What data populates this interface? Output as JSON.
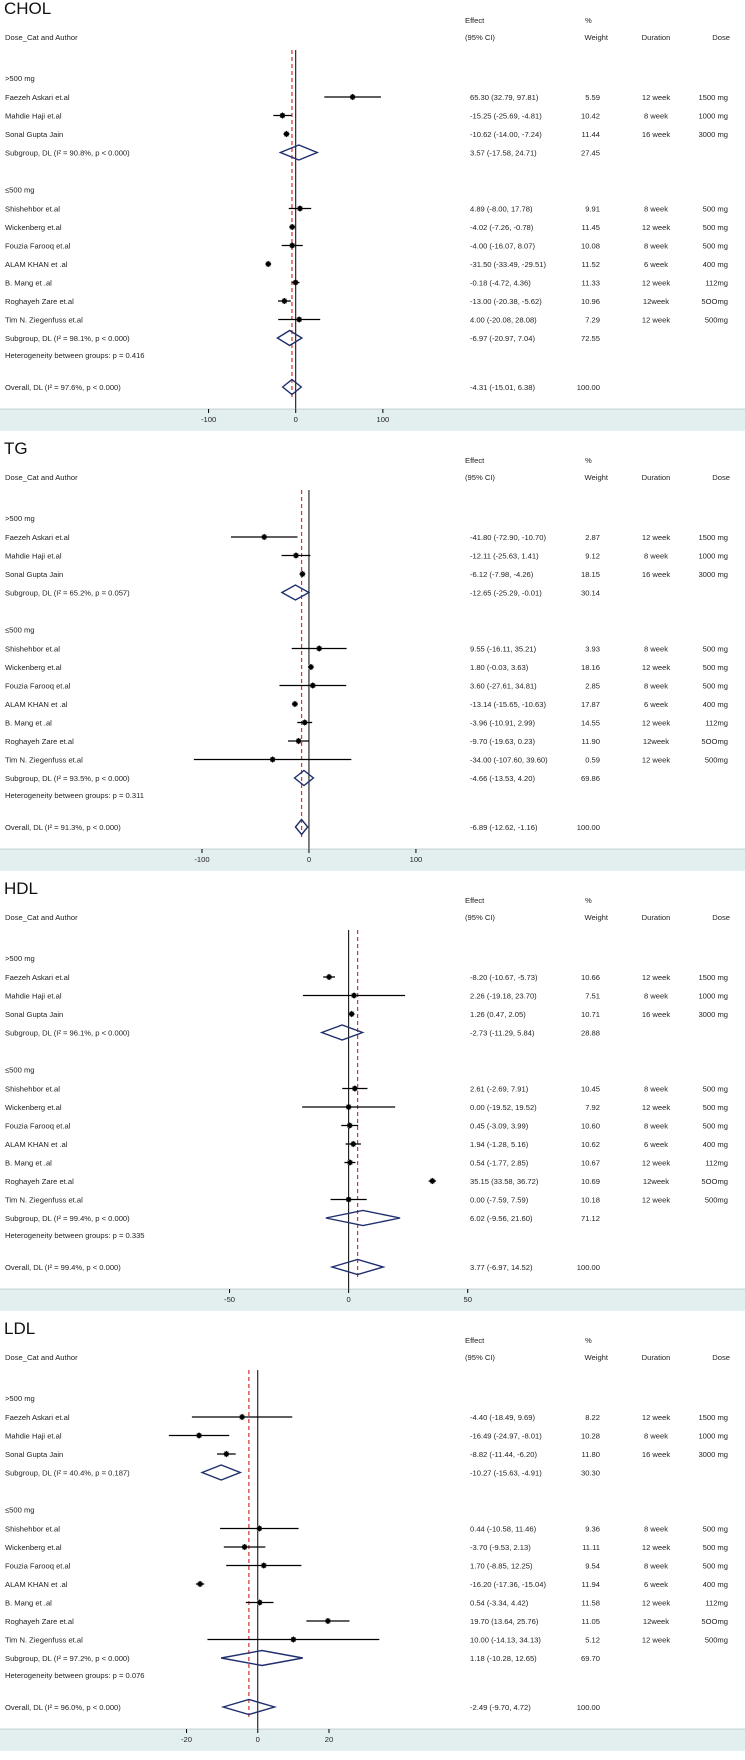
{
  "colors": {
    "axis_band": "#e3eeee",
    "ci_line": "#000000",
    "point": "#000000",
    "diamond": "#1f2f6e",
    "null_line": "#000000",
    "overall_line": "#d9312b"
  },
  "columns": {
    "study": "Dose_Cat and Author",
    "effect_top": "Effect",
    "effect_bottom": "(95% CI)",
    "weight_top": "%",
    "weight_bottom": "Weight",
    "duration": "Duration",
    "dose": "Dose"
  },
  "chart_data": [
    {
      "type": "forest",
      "title": "CHOL",
      "xlim": [
        -150,
        200
      ],
      "ticks": [
        -100,
        0,
        100
      ],
      "overall_effect": -4.31,
      "groups": [
        {
          "label": ">500 mg",
          "studies": [
            {
              "author": "Faezeh Askari et.al",
              "effect": 65.3,
              "lo": 32.79,
              "hi": 97.81,
              "ci_text": "65.30 (32.79, 97.81)",
              "weight": "5.59",
              "duration": "12 week",
              "dose": "1500 mg"
            },
            {
              "author": "Mahdie Haji et.al",
              "effect": -15.25,
              "lo": -25.69,
              "hi": -4.81,
              "ci_text": "-15.25 (-25.69, -4.81)",
              "weight": "10.42",
              "duration": "8 week",
              "dose": "1000 mg"
            },
            {
              "author": "Sonal Gupta Jain",
              "effect": -10.62,
              "lo": -14.0,
              "hi": -7.24,
              "ci_text": "-10.62 (-14.00, -7.24)",
              "weight": "11.44",
              "duration": "16 week",
              "dose": "3000 mg"
            }
          ],
          "subgroup": {
            "label": "Subgroup, DL (I² = 90.8%, p < 0.000)",
            "effect": 3.57,
            "lo": -17.58,
            "hi": 24.71,
            "ci_text": "3.57 (-17.58, 24.71)",
            "weight": "27.45"
          }
        },
        {
          "label": "≤500 mg",
          "studies": [
            {
              "author": "Shishehbor et.al",
              "effect": 4.89,
              "lo": -8.0,
              "hi": 17.78,
              "ci_text": "4.89 (-8.00, 17.78)",
              "weight": "9.91",
              "duration": "8 week",
              "dose": "500 mg"
            },
            {
              "author": "Wickenberg et.al",
              "effect": -4.02,
              "lo": -7.26,
              "hi": -0.78,
              "ci_text": "-4.02 (-7.26, -0.78)",
              "weight": "11.45",
              "duration": "12 week",
              "dose": "500 mg"
            },
            {
              "author": "Fouzia Farooq et.al",
              "effect": -4.0,
              "lo": -16.07,
              "hi": 8.07,
              "ci_text": "-4.00 (-16.07, 8.07)",
              "weight": "10.08",
              "duration": "8 week",
              "dose": "500 mg"
            },
            {
              "author": "ALAM KHAN et .al",
              "effect": -31.5,
              "lo": -33.49,
              "hi": -29.51,
              "ci_text": "-31.50 (-33.49, -29.51)",
              "weight": "11.52",
              "duration": "6 week",
              "dose": "400 mg"
            },
            {
              "author": "B. Mang et .al",
              "effect": -0.18,
              "lo": -4.72,
              "hi": 4.36,
              "ci_text": "-0.18 (-4.72, 4.36)",
              "weight": "11.33",
              "duration": "12 week",
              "dose": "112mg"
            },
            {
              "author": "Roghayeh Zare et.al",
              "effect": -13.0,
              "lo": -20.38,
              "hi": -5.62,
              "ci_text": "-13.00 (-20.38, -5.62)",
              "weight": "10.96",
              "duration": "12week",
              "dose": "5OOmg"
            },
            {
              "author": "Tim N. Ziegenfuss et.al",
              "effect": 4.0,
              "lo": -20.08,
              "hi": 28.08,
              "ci_text": "4.00 (-20.08, 28.08)",
              "weight": "7.29",
              "duration": "12 week",
              "dose": "500mg"
            }
          ],
          "subgroup": {
            "label": "Subgroup, DL (I² = 98.1%, p < 0.000)",
            "effect": -6.97,
            "lo": -20.97,
            "hi": 7.04,
            "ci_text": "-6.97 (-20.97, 7.04)",
            "weight": "72.55"
          }
        }
      ],
      "heterogeneity": "Heterogeneity between groups: p = 0.416",
      "overall": {
        "label": "Overall, DL (I² = 97.6%, p < 0.000)",
        "effect": -4.31,
        "lo": -15.01,
        "hi": 6.38,
        "ci_text": "-4.31 (-15.01, 6.38)",
        "weight": "100.00"
      }
    },
    {
      "type": "forest",
      "title": "TG",
      "xlim": [
        -200,
        230
      ],
      "ticks": [
        -100,
        0,
        100
      ],
      "overall_effect": -6.89,
      "groups": [
        {
          "label": ">500 mg",
          "studies": [
            {
              "author": "Faezeh Askari et.al",
              "effect": -41.8,
              "lo": -72.9,
              "hi": -10.7,
              "ci_text": "-41.80 (-72.90, -10.70)",
              "weight": "2.87",
              "duration": "12 week",
              "dose": "1500 mg"
            },
            {
              "author": "Mahdie Haji et.al",
              "effect": -12.11,
              "lo": -25.63,
              "hi": 1.41,
              "ci_text": "-12.11 (-25.63, 1.41)",
              "weight": "9.12",
              "duration": "8 week",
              "dose": "1000 mg"
            },
            {
              "author": "Sonal Gupta Jain",
              "effect": -6.12,
              "lo": -7.98,
              "hi": -4.26,
              "ci_text": "-6.12 (-7.98, -4.26)",
              "weight": "18.15",
              "duration": "16 week",
              "dose": "3000 mg"
            }
          ],
          "subgroup": {
            "label": "Subgroup, DL (I² = 65.2%, p = 0.057)",
            "effect": -12.65,
            "lo": -25.29,
            "hi": -0.01,
            "ci_text": "-12.65 (-25.29, -0.01)",
            "weight": "30.14"
          }
        },
        {
          "label": "≤500 mg",
          "studies": [
            {
              "author": "Shishehbor et.al",
              "effect": 9.55,
              "lo": -16.11,
              "hi": 35.21,
              "ci_text": "9.55 (-16.11, 35.21)",
              "weight": "3.93",
              "duration": "8 week",
              "dose": "500 mg"
            },
            {
              "author": "Wickenberg et.al",
              "effect": 1.8,
              "lo": -0.03,
              "hi": 3.63,
              "ci_text": "1.80 (-0.03, 3.63)",
              "weight": "18.16",
              "duration": "12 week",
              "dose": "500 mg"
            },
            {
              "author": "Fouzia Farooq et.al",
              "effect": 3.6,
              "lo": -27.61,
              "hi": 34.81,
              "ci_text": "3.60 (-27.61, 34.81)",
              "weight": "2.85",
              "duration": "8 week",
              "dose": "500 mg"
            },
            {
              "author": "ALAM KHAN et .al",
              "effect": -13.14,
              "lo": -15.65,
              "hi": -10.63,
              "ci_text": "-13.14 (-15.65, -10.63)",
              "weight": "17.87",
              "duration": "6 week",
              "dose": "400 mg"
            },
            {
              "author": "B. Mang et .al",
              "effect": -3.96,
              "lo": -10.91,
              "hi": 2.99,
              "ci_text": "-3.96 (-10.91, 2.99)",
              "weight": "14.55",
              "duration": "12 week",
              "dose": "112mg"
            },
            {
              "author": "Roghayeh Zare et.al",
              "effect": -9.7,
              "lo": -19.63,
              "hi": 0.23,
              "ci_text": "-9.70 (-19.63, 0.23)",
              "weight": "11.90",
              "duration": "12week",
              "dose": "5OOmg"
            },
            {
              "author": "Tim N. Ziegenfuss et.al",
              "effect": -34.0,
              "lo": -107.6,
              "hi": 39.6,
              "ci_text": "-34.00 (-107.60, 39.60)",
              "weight": "0.59",
              "duration": "12 week",
              "dose": "500mg"
            }
          ],
          "subgroup": {
            "label": "Subgroup, DL (I² = 93.5%, p < 0.000)",
            "effect": -4.66,
            "lo": -13.53,
            "hi": 4.2,
            "ci_text": "-4.66 (-13.53, 4.20)",
            "weight": "69.86"
          }
        }
      ],
      "heterogeneity": "Heterogeneity between groups: p = 0.311",
      "overall": {
        "label": "Overall, DL (I² = 91.3%, p < 0.000)",
        "effect": -6.89,
        "lo": -12.62,
        "hi": -1.16,
        "ci_text": "-6.89 (-12.62, -1.16)",
        "weight": "100.00"
      }
    },
    {
      "type": "forest",
      "title": "HDL",
      "xlim": [
        -75,
        90
      ],
      "ticks": [
        -50,
        0,
        50
      ],
      "overall_effect": 3.77,
      "groups": [
        {
          "label": ">500 mg",
          "studies": [
            {
              "author": "Faezeh Askari et.al",
              "effect": -8.2,
              "lo": -10.67,
              "hi": -5.73,
              "ci_text": "-8.20 (-10.67, -5.73)",
              "weight": "10.66",
              "duration": "12 week",
              "dose": "1500 mg"
            },
            {
              "author": "Mahdie Haji et.al",
              "effect": 2.26,
              "lo": -19.18,
              "hi": 23.7,
              "ci_text": "2.26 (-19.18, 23.70)",
              "weight": "7.51",
              "duration": "8 week",
              "dose": "1000 mg"
            },
            {
              "author": "Sonal Gupta Jain",
              "effect": 1.26,
              "lo": 0.47,
              "hi": 2.05,
              "ci_text": "1.26 (0.47, 2.05)",
              "weight": "10.71",
              "duration": "16 week",
              "dose": "3000 mg"
            }
          ],
          "subgroup": {
            "label": "Subgroup, DL (I² = 96.1%, p < 0.000)",
            "effect": -2.73,
            "lo": -11.29,
            "hi": 5.84,
            "ci_text": "-2.73 (-11.29, 5.84)",
            "weight": "28.88"
          }
        },
        {
          "label": "≤500 mg",
          "studies": [
            {
              "author": "Shishehbor et.al",
              "effect": 2.61,
              "lo": -2.69,
              "hi": 7.91,
              "ci_text": "2.61 (-2.69, 7.91)",
              "weight": "10.45",
              "duration": "8 week",
              "dose": "500 mg"
            },
            {
              "author": "Wickenberg et.al",
              "effect": 0.0,
              "lo": -19.52,
              "hi": 19.52,
              "ci_text": "0.00 (-19.52, 19.52)",
              "weight": "7.92",
              "duration": "12 week",
              "dose": "500 mg"
            },
            {
              "author": "Fouzia Farooq et.al",
              "effect": 0.45,
              "lo": -3.09,
              "hi": 3.99,
              "ci_text": "0.45 (-3.09, 3.99)",
              "weight": "10.60",
              "duration": "8 week",
              "dose": "500 mg"
            },
            {
              "author": "ALAM KHAN et .al",
              "effect": 1.94,
              "lo": -1.28,
              "hi": 5.16,
              "ci_text": "1.94 (-1.28, 5.16)",
              "weight": "10.62",
              "duration": "6 week",
              "dose": "400 mg"
            },
            {
              "author": "B. Mang et .al",
              "effect": 0.54,
              "lo": -1.77,
              "hi": 2.85,
              "ci_text": "0.54 (-1.77, 2.85)",
              "weight": "10.67",
              "duration": "12 week",
              "dose": "112mg"
            },
            {
              "author": "Roghayeh Zare et.al",
              "effect": 35.15,
              "lo": 33.58,
              "hi": 36.72,
              "ci_text": "35.15 (33.58, 36.72)",
              "weight": "10.69",
              "duration": "12week",
              "dose": "5OOmg"
            },
            {
              "author": "Tim N. Ziegenfuss et.al",
              "effect": 0.0,
              "lo": -7.59,
              "hi": 7.59,
              "ci_text": "0.00 (-7.59, 7.59)",
              "weight": "10.18",
              "duration": "12 week",
              "dose": "500mg"
            }
          ],
          "subgroup": {
            "label": "Subgroup, DL (I² = 99.4%, p < 0.000)",
            "effect": 6.02,
            "lo": -9.56,
            "hi": 21.6,
            "ci_text": "6.02 (-9.56, 21.60)",
            "weight": "71.12"
          }
        }
      ],
      "heterogeneity": "Heterogeneity between groups: p = 0.335",
      "overall": {
        "label": "Overall, DL (I² = 99.4%, p < 0.000)",
        "effect": 3.77,
        "lo": -6.97,
        "hi": 14.52,
        "ci_text": "3.77 (-6.97, 14.52)",
        "weight": "100.00"
      }
    },
    {
      "type": "forest",
      "title": "LDL",
      "xlim": [
        -37,
        45
      ],
      "ticks": [
        -20,
        0,
        20
      ],
      "overall_effect": -2.49,
      "groups": [
        {
          "label": ">500 mg",
          "studies": [
            {
              "author": "Faezeh Askari et.al",
              "effect": -4.4,
              "lo": -18.49,
              "hi": 9.69,
              "ci_text": "-4.40 (-18.49, 9.69)",
              "weight": "8.22",
              "duration": "12 week",
              "dose": "1500 mg"
            },
            {
              "author": "Mahdie Haji et.al",
              "effect": -16.49,
              "lo": -24.97,
              "hi": -8.01,
              "ci_text": "-16.49 (-24.97, -8.01)",
              "weight": "10.28",
              "duration": "8 week",
              "dose": "1000 mg"
            },
            {
              "author": "Sonal Gupta Jain",
              "effect": -8.82,
              "lo": -11.44,
              "hi": -6.2,
              "ci_text": "-8.82 (-11.44, -6.20)",
              "weight": "11.80",
              "duration": "16 week",
              "dose": "3000 mg"
            }
          ],
          "subgroup": {
            "label": "Subgroup, DL (I² = 40.4%, p = 0.187)",
            "effect": -10.27,
            "lo": -15.63,
            "hi": -4.91,
            "ci_text": "-10.27 (-15.63, -4.91)",
            "weight": "30.30"
          }
        },
        {
          "label": "≤500 mg",
          "studies": [
            {
              "author": "Shishehbor et.al",
              "effect": 0.44,
              "lo": -10.58,
              "hi": 11.46,
              "ci_text": "0.44 (-10.58, 11.46)",
              "weight": "9.36",
              "duration": "8 week",
              "dose": "500 mg"
            },
            {
              "author": "Wickenberg et.al",
              "effect": -3.7,
              "lo": -9.53,
              "hi": 2.13,
              "ci_text": "-3.70 (-9.53, 2.13)",
              "weight": "11.11",
              "duration": "12 week",
              "dose": "500 mg"
            },
            {
              "author": "Fouzia Farooq et.al",
              "effect": 1.7,
              "lo": -8.85,
              "hi": 12.25,
              "ci_text": "1.70 (-8.85, 12.25)",
              "weight": "9.54",
              "duration": "8 week",
              "dose": "500 mg"
            },
            {
              "author": "ALAM KHAN et .al",
              "effect": -16.2,
              "lo": -17.36,
              "hi": -15.04,
              "ci_text": "-16.20 (-17.36, -15.04)",
              "weight": "11.94",
              "duration": "6 week",
              "dose": "400 mg"
            },
            {
              "author": "B. Mang et .al",
              "effect": 0.54,
              "lo": -3.34,
              "hi": 4.42,
              "ci_text": "0.54 (-3.34, 4.42)",
              "weight": "11.58",
              "duration": "12 week",
              "dose": "112mg"
            },
            {
              "author": "Roghayeh Zare et.al",
              "effect": 19.7,
              "lo": 13.64,
              "hi": 25.76,
              "ci_text": "19.70 (13.64, 25.76)",
              "weight": "11.05",
              "duration": "12week",
              "dose": "5OOmg"
            },
            {
              "author": "Tim N. Ziegenfuss et.al",
              "effect": 10.0,
              "lo": -14.13,
              "hi": 34.13,
              "ci_text": "10.00 (-14.13, 34.13)",
              "weight": "5.12",
              "duration": "12 week",
              "dose": "500mg"
            }
          ],
          "subgroup": {
            "label": "Subgroup, DL (I² = 97.2%, p < 0.000)",
            "effect": 1.18,
            "lo": -10.28,
            "hi": 12.65,
            "ci_text": "1.18 (-10.28, 12.65)",
            "weight": "69.70"
          }
        }
      ],
      "heterogeneity": "Heterogeneity between groups: p = 0.076",
      "overall": {
        "label": "Overall, DL (I² = 96.0%, p < 0.000)",
        "effect": -2.49,
        "lo": -9.7,
        "hi": 4.72,
        "ci_text": "-2.49 (-9.70, 4.72)",
        "weight": "100.00"
      }
    }
  ]
}
